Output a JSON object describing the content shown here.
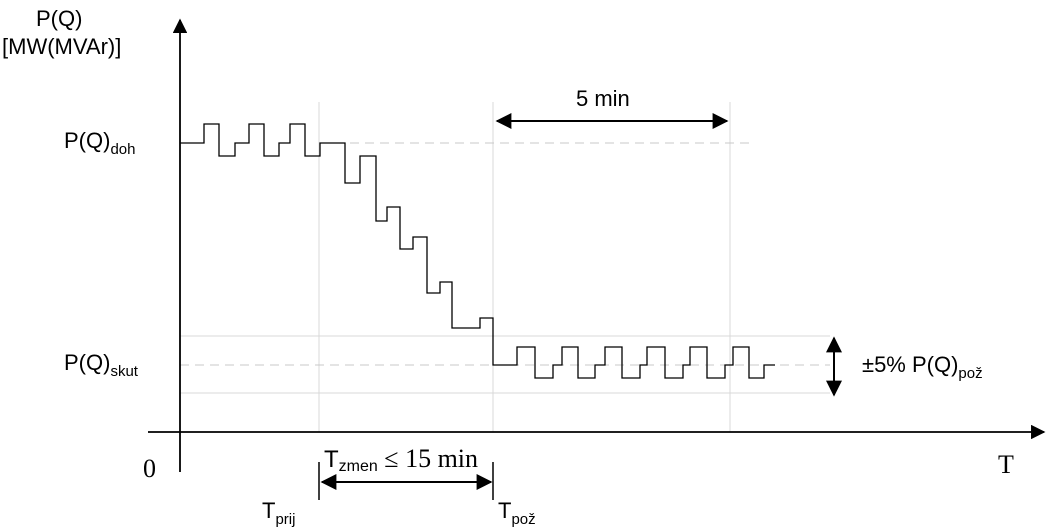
{
  "y_axis_label": {
    "line1": "P(Q)",
    "line2": "[MW(MVAr)]"
  },
  "x_axis_label": "T",
  "origin_label": "0",
  "level_high_label": {
    "base": "P(Q)",
    "sub": "doh"
  },
  "level_low_label": {
    "base": "P(Q)",
    "sub": "skut"
  },
  "tolerance_label": {
    "base": "±5% P(Q)",
    "sub": "pož"
  },
  "five_min_label": "5 min",
  "tzmen_label": {
    "base": "T",
    "sub": "zmen",
    "rest": " ≤ 15 min"
  },
  "tprij_label": {
    "base": "T",
    "sub": "prij"
  },
  "tpoz_label": {
    "base": "T",
    "sub": "pož"
  }
}
